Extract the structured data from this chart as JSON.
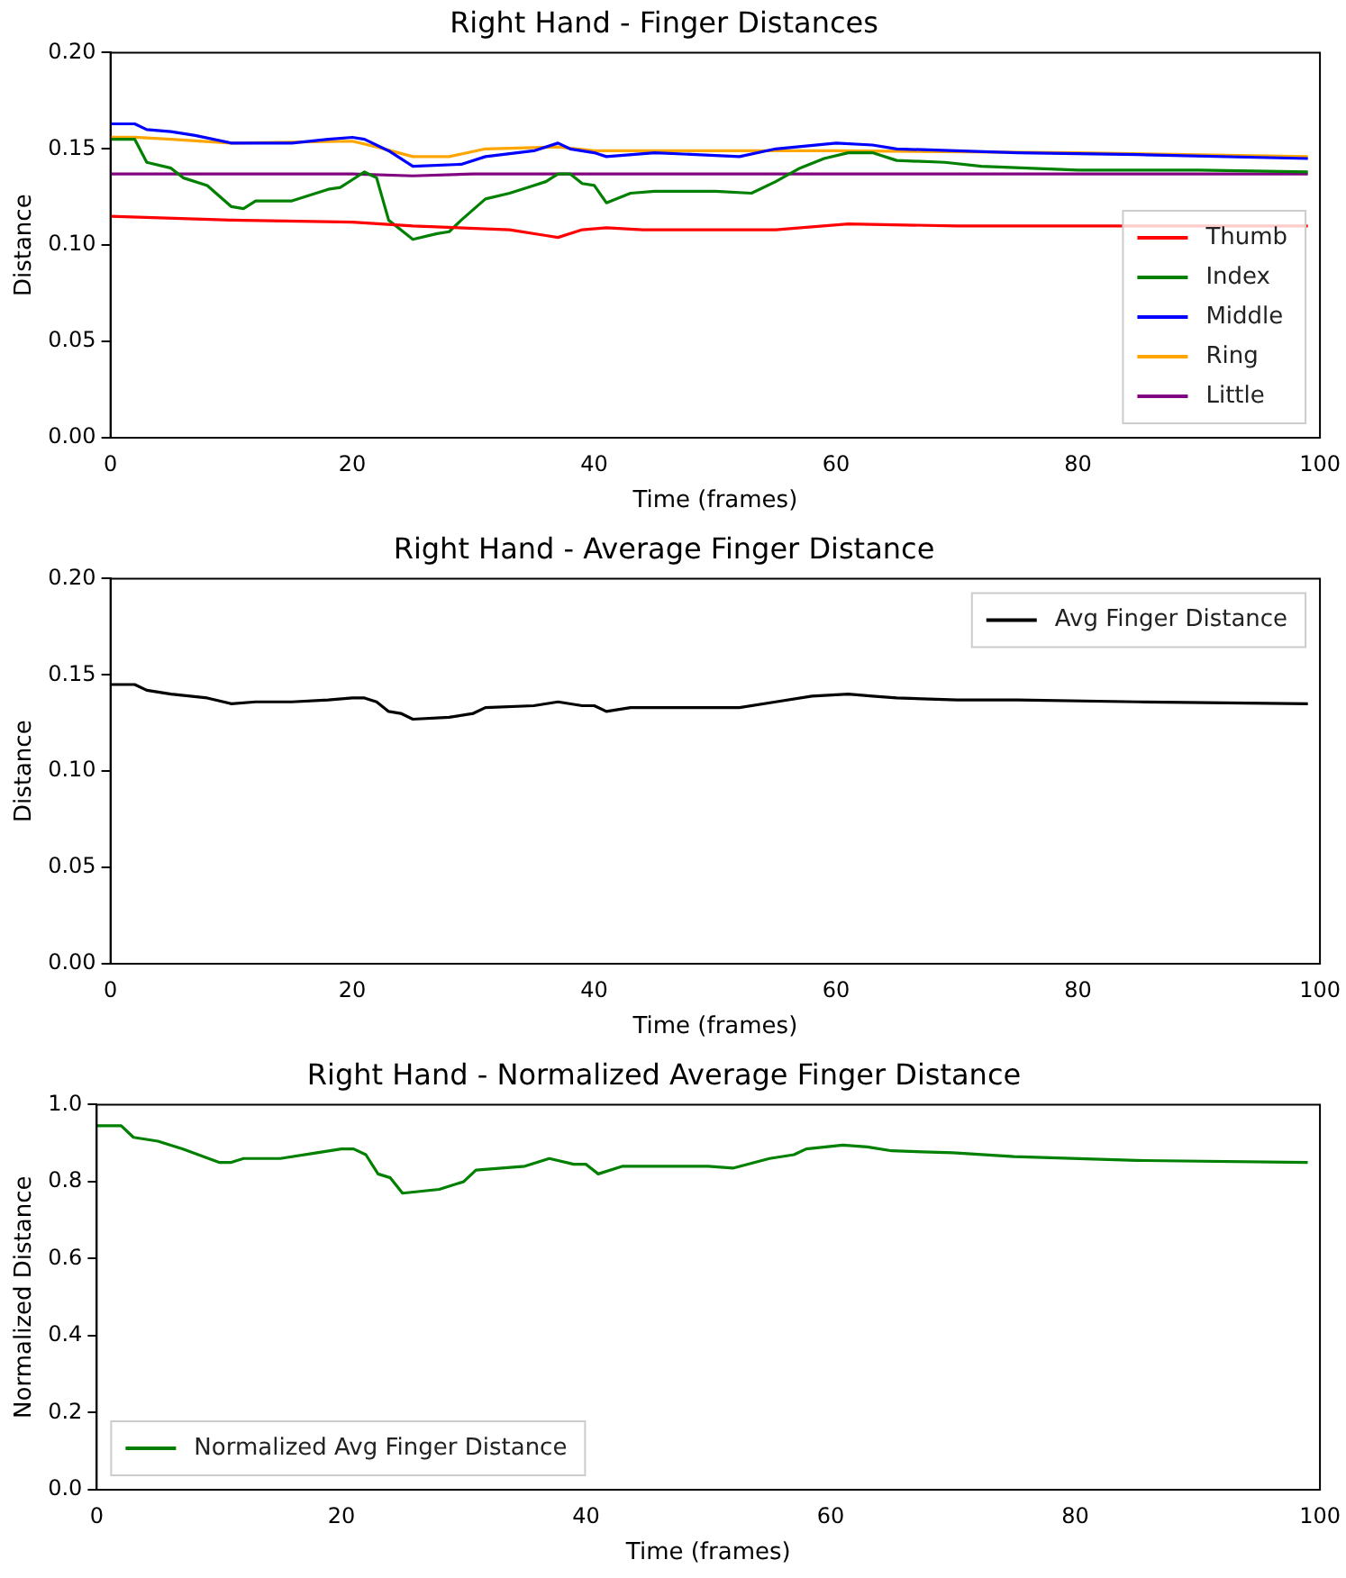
{
  "chart_data": [
    {
      "type": "line",
      "title": "Right Hand - Finger Distances",
      "xlabel": "Time (frames)",
      "ylabel": "Distance",
      "xlim": [
        0,
        100
      ],
      "xticks": [
        0,
        20,
        40,
        60,
        80,
        100
      ],
      "ylim": [
        0,
        0.2
      ],
      "yticks": [
        {
          "value": 0,
          "label": "0.00"
        },
        {
          "value": 0.05,
          "label": "0.05"
        },
        {
          "value": 0.1,
          "label": "0.10"
        },
        {
          "value": 0.15,
          "label": "0.15"
        },
        {
          "value": 0.2,
          "label": "0.20"
        }
      ],
      "grid": false,
      "legend": "bottom right",
      "marker": "none",
      "line_style": "solid",
      "series": [
        {
          "name": "Thumb",
          "color": "#ff0000",
          "x": [
            0,
            10,
            20,
            25,
            33,
            36,
            37,
            39,
            41,
            44,
            55,
            61,
            70,
            99
          ],
          "values": [
            0.115,
            0.113,
            0.112,
            0.11,
            0.108,
            0.105,
            0.104,
            0.108,
            0.109,
            0.108,
            0.108,
            0.111,
            0.11,
            0.11
          ]
        },
        {
          "name": "Index",
          "color": "#008000",
          "x": [
            0,
            2,
            3,
            5,
            6,
            8,
            10,
            11,
            12,
            15,
            18,
            19,
            20,
            21,
            22,
            23,
            25,
            27,
            28,
            29,
            31,
            33,
            35,
            36,
            37,
            38,
            39,
            40,
            41,
            43,
            45,
            50,
            53,
            55,
            57,
            59,
            61,
            63,
            65,
            69,
            72,
            80,
            90,
            99
          ],
          "values": [
            0.155,
            0.155,
            0.143,
            0.14,
            0.135,
            0.131,
            0.12,
            0.119,
            0.123,
            0.123,
            0.129,
            0.13,
            0.134,
            0.138,
            0.135,
            0.113,
            0.103,
            0.106,
            0.107,
            0.113,
            0.124,
            0.127,
            0.131,
            0.133,
            0.137,
            0.137,
            0.132,
            0.131,
            0.122,
            0.127,
            0.128,
            0.128,
            0.127,
            0.133,
            0.14,
            0.145,
            0.148,
            0.148,
            0.144,
            0.143,
            0.141,
            0.139,
            0.139,
            0.138
          ]
        },
        {
          "name": "Middle",
          "color": "#0000ff",
          "x": [
            0,
            2,
            3,
            5,
            7,
            10,
            15,
            18,
            20,
            21,
            23,
            25,
            29,
            31,
            35,
            37,
            38,
            40,
            41,
            45,
            52,
            55,
            60,
            63,
            65,
            75,
            85,
            99
          ],
          "values": [
            0.163,
            0.163,
            0.16,
            0.159,
            0.157,
            0.153,
            0.153,
            0.155,
            0.156,
            0.155,
            0.149,
            0.141,
            0.142,
            0.146,
            0.149,
            0.153,
            0.15,
            0.148,
            0.146,
            0.148,
            0.146,
            0.15,
            0.153,
            0.152,
            0.15,
            0.148,
            0.147,
            0.145
          ]
        },
        {
          "name": "Ring",
          "color": "#ffa500",
          "x": [
            0,
            2,
            5,
            10,
            20,
            22,
            25,
            28,
            31,
            37,
            40,
            50,
            60,
            80,
            99
          ],
          "values": [
            0.156,
            0.156,
            0.155,
            0.153,
            0.154,
            0.151,
            0.146,
            0.146,
            0.15,
            0.151,
            0.149,
            0.149,
            0.149,
            0.148,
            0.146
          ]
        },
        {
          "name": "Little",
          "color": "#800080",
          "x": [
            0,
            10,
            20,
            25,
            30,
            40,
            60,
            80,
            99
          ],
          "values": [
            0.137,
            0.137,
            0.137,
            0.136,
            0.137,
            0.137,
            0.137,
            0.137,
            0.137
          ]
        }
      ]
    },
    {
      "type": "line",
      "title": "Right Hand - Average Finger Distance",
      "xlabel": "Time (frames)",
      "ylabel": "Distance",
      "xlim": [
        0,
        100
      ],
      "xticks": [
        0,
        20,
        40,
        60,
        80,
        100
      ],
      "ylim": [
        0,
        0.2
      ],
      "yticks": [
        {
          "value": 0,
          "label": "0.00"
        },
        {
          "value": 0.05,
          "label": "0.05"
        },
        {
          "value": 0.1,
          "label": "0.10"
        },
        {
          "value": 0.15,
          "label": "0.15"
        },
        {
          "value": 0.2,
          "label": "0.20"
        }
      ],
      "grid": false,
      "legend": "top right",
      "marker": "none",
      "line_style": "solid",
      "series": [
        {
          "name": "Avg Finger Distance",
          "color": "#000000",
          "x": [
            0,
            2,
            3,
            5,
            8,
            10,
            12,
            15,
            18,
            20,
            21,
            22,
            23,
            24,
            25,
            28,
            30,
            31,
            35,
            37,
            39,
            40,
            41,
            43,
            50,
            52,
            55,
            58,
            61,
            63,
            65,
            70,
            75,
            85,
            99
          ],
          "values": [
            0.145,
            0.145,
            0.142,
            0.14,
            0.138,
            0.135,
            0.136,
            0.136,
            0.137,
            0.138,
            0.138,
            0.136,
            0.131,
            0.13,
            0.127,
            0.128,
            0.13,
            0.133,
            0.134,
            0.136,
            0.134,
            0.134,
            0.131,
            0.133,
            0.133,
            0.133,
            0.136,
            0.139,
            0.14,
            0.139,
            0.138,
            0.137,
            0.137,
            0.136,
            0.135
          ]
        }
      ]
    },
    {
      "type": "line",
      "title": "Right Hand - Normalized Average Finger Distance",
      "xlabel": "Time (frames)",
      "ylabel": "Normalized Distance",
      "xlim": [
        0,
        100
      ],
      "xticks": [
        0,
        20,
        40,
        60,
        80,
        100
      ],
      "ylim": [
        0,
        1
      ],
      "yticks": [
        {
          "value": 0,
          "label": "0.0"
        },
        {
          "value": 0.2,
          "label": "0.2"
        },
        {
          "value": 0.4,
          "label": "0.4"
        },
        {
          "value": 0.6,
          "label": "0.6"
        },
        {
          "value": 0.8,
          "label": "0.8"
        },
        {
          "value": 1,
          "label": "1.0"
        }
      ],
      "grid": false,
      "legend": "bottom left",
      "marker": "none",
      "line_style": "solid",
      "series": [
        {
          "name": "Normalized Avg Finger Distance",
          "color": "#008000",
          "x": [
            0,
            2,
            3,
            5,
            7,
            10,
            11,
            12,
            15,
            18,
            20,
            21,
            22,
            23,
            24,
            25,
            28,
            30,
            31,
            35,
            36,
            37,
            39,
            40,
            41,
            43,
            50,
            52,
            55,
            57,
            58,
            61,
            63,
            65,
            70,
            75,
            85,
            99
          ],
          "values": [
            0.945,
            0.945,
            0.915,
            0.905,
            0.885,
            0.85,
            0.85,
            0.86,
            0.86,
            0.875,
            0.885,
            0.885,
            0.87,
            0.82,
            0.81,
            0.77,
            0.78,
            0.8,
            0.83,
            0.84,
            0.85,
            0.86,
            0.845,
            0.845,
            0.82,
            0.84,
            0.84,
            0.835,
            0.86,
            0.87,
            0.885,
            0.895,
            0.89,
            0.88,
            0.875,
            0.865,
            0.855,
            0.85
          ]
        }
      ]
    }
  ]
}
